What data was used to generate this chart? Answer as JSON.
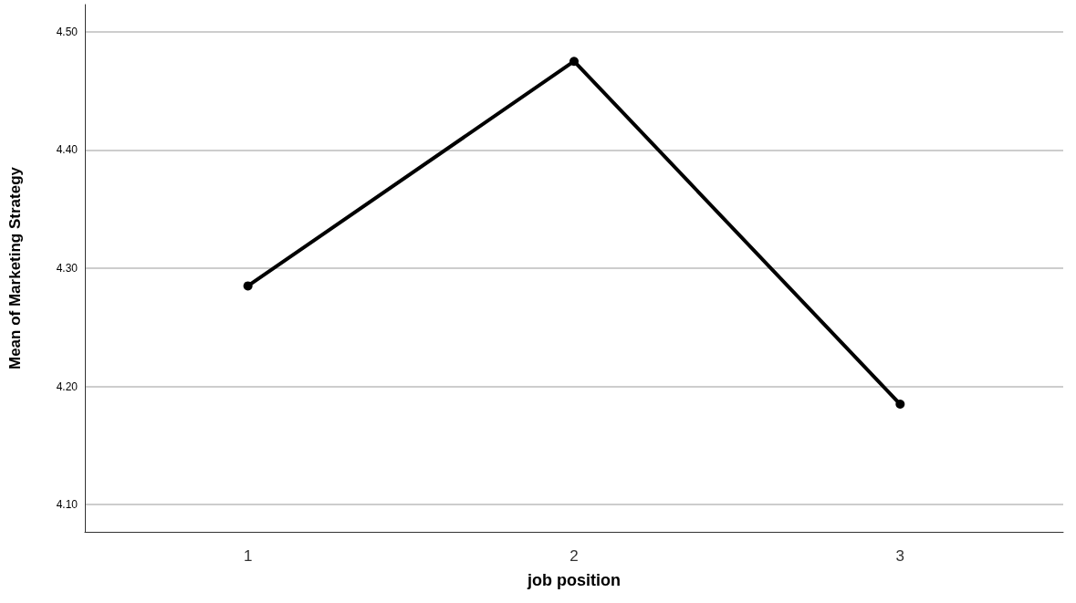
{
  "chart_data": {
    "type": "line",
    "xlabel": "job position",
    "ylabel": "Mean of Marketing Strategy",
    "categories": [
      "1",
      "2",
      "3"
    ],
    "series": [
      {
        "color": "#000000",
        "values": [
          4.285,
          4.475,
          4.185
        ]
      }
    ],
    "ylim": [
      4.077,
      4.523
    ],
    "yticks": [
      {
        "value": 4.1,
        "label": "4.10"
      },
      {
        "value": 4.2,
        "label": "4.20"
      },
      {
        "value": 4.3,
        "label": "4.30"
      },
      {
        "value": 4.4,
        "label": "4.40"
      },
      {
        "value": 4.5,
        "label": "4.50"
      }
    ],
    "grid": "y",
    "marker": "circle",
    "line_style": "solid"
  }
}
